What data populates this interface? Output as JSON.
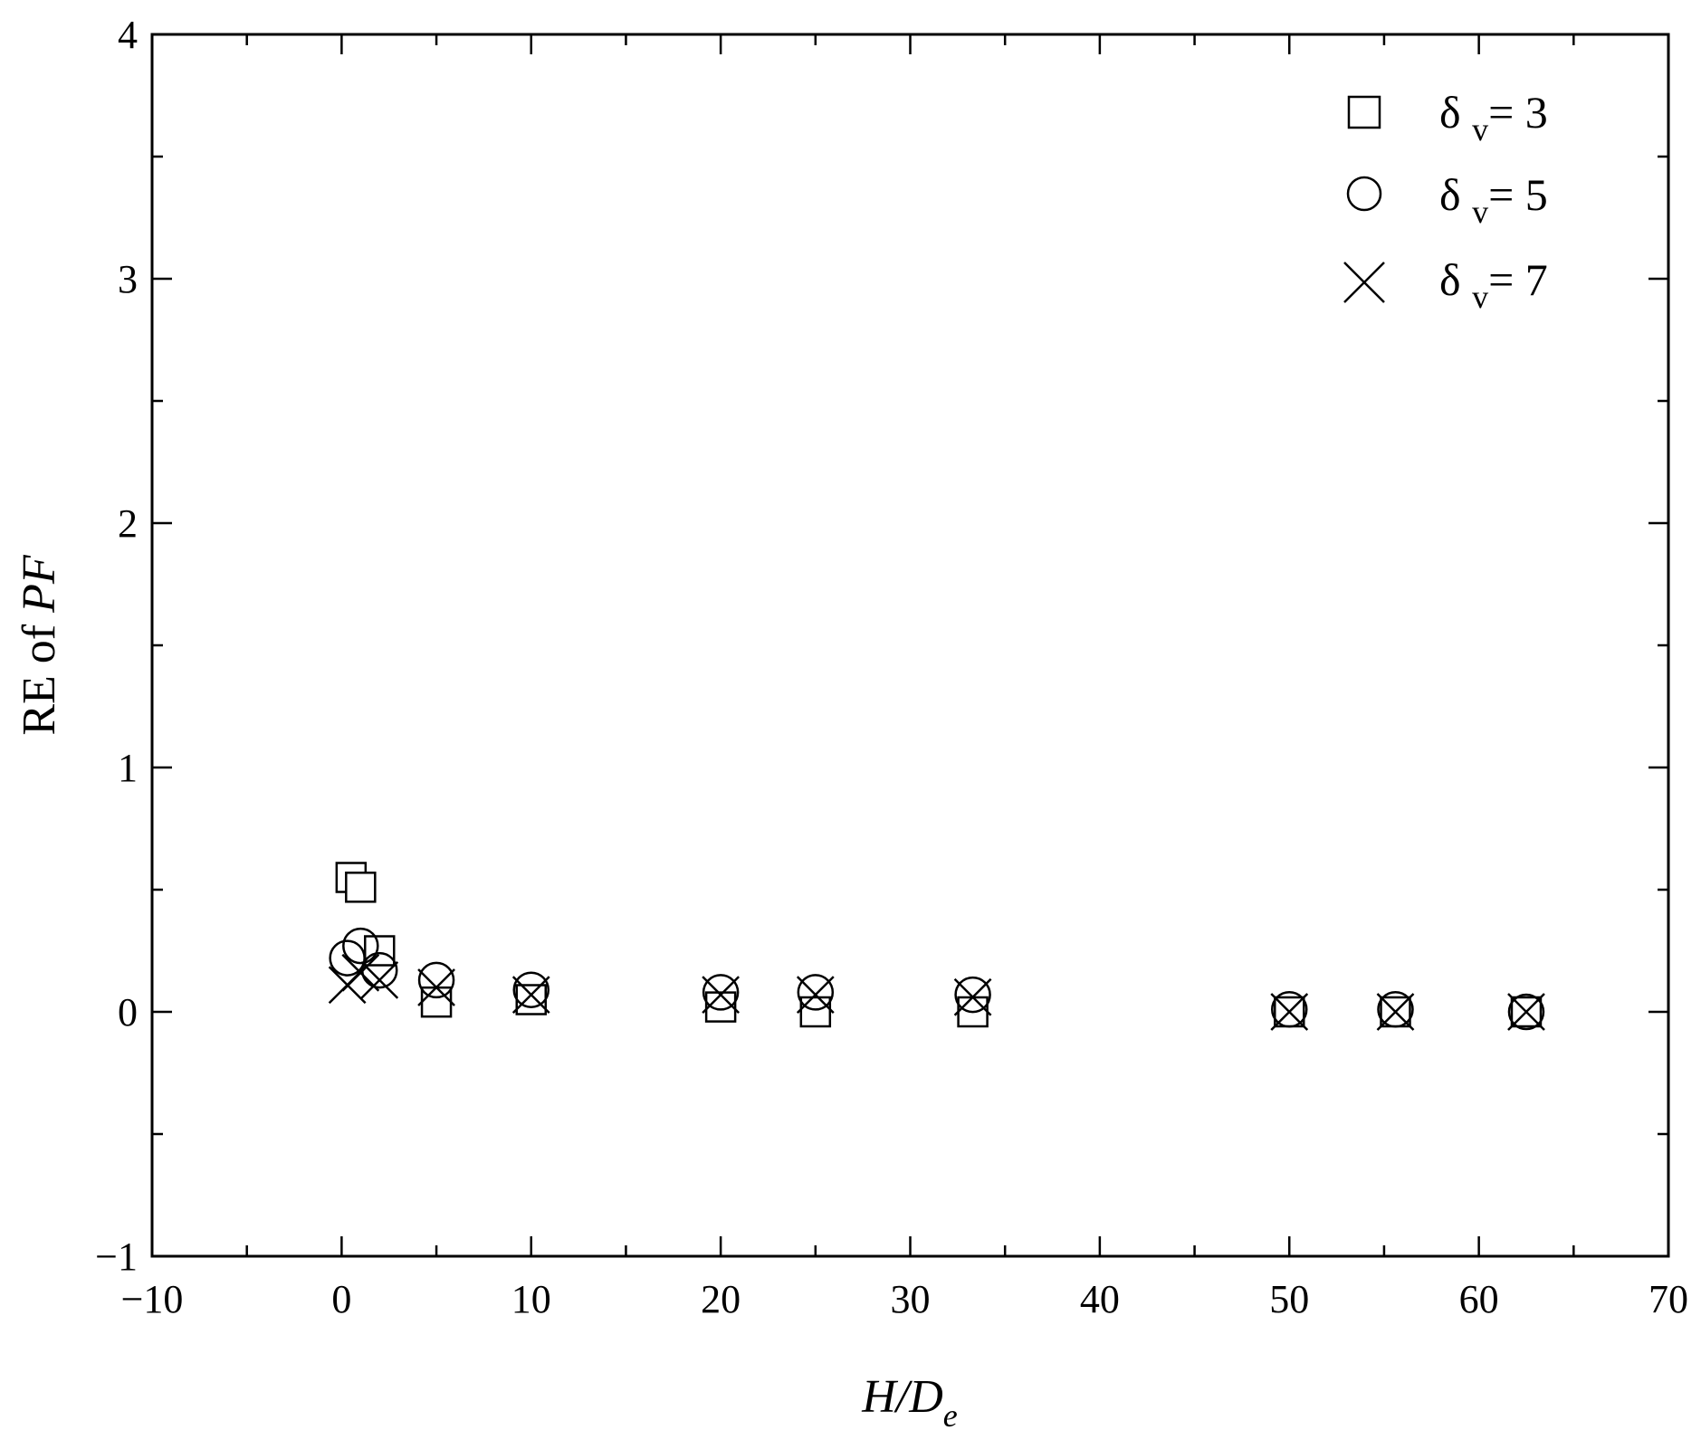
{
  "chart_data": {
    "type": "scatter",
    "xlabel": {
      "base": "H/D",
      "sub": "e"
    },
    "ylabel": {
      "prefix": "RE of ",
      "italic": "PF"
    },
    "xlim": [
      -10,
      70
    ],
    "ylim": [
      -1,
      4
    ],
    "x_ticks": [
      -10,
      0,
      10,
      20,
      30,
      40,
      50,
      60,
      70
    ],
    "y_ticks": [
      -1,
      0,
      1,
      2,
      3,
      4
    ],
    "x_tick_labels": [
      "−10",
      "0",
      "10",
      "20",
      "30",
      "40",
      "50",
      "60",
      "70"
    ],
    "y_tick_labels": [
      "−1",
      "0",
      "1",
      "2",
      "3",
      "4"
    ],
    "grid": false,
    "legend_position": "top-right",
    "series": [
      {
        "name": {
          "prefix": "δ ",
          "sub": "v",
          "suffix": "= 3"
        },
        "marker": "square",
        "points": [
          [
            0.5,
            0.55
          ],
          [
            1.0,
            0.51
          ],
          [
            2.0,
            0.25
          ],
          [
            5.0,
            0.04
          ],
          [
            10.0,
            0.05
          ],
          [
            20.0,
            0.02
          ],
          [
            25.0,
            0.0
          ],
          [
            33.3,
            0.0
          ],
          [
            50.0,
            0.0
          ],
          [
            55.6,
            0.0
          ],
          [
            62.5,
            0.0
          ]
        ]
      },
      {
        "name": {
          "prefix": "δ ",
          "sub": "v",
          "suffix": "= 5"
        },
        "marker": "circle",
        "points": [
          [
            0.3,
            0.22
          ],
          [
            1.0,
            0.27
          ],
          [
            2.0,
            0.17
          ],
          [
            5.0,
            0.13
          ],
          [
            10.0,
            0.09
          ],
          [
            20.0,
            0.08
          ],
          [
            25.0,
            0.08
          ],
          [
            33.3,
            0.07
          ],
          [
            50.0,
            0.01
          ],
          [
            55.6,
            0.01
          ],
          [
            62.5,
            0.0
          ]
        ]
      },
      {
        "name": {
          "prefix": "δ ",
          "sub": "v",
          "suffix": "= 7"
        },
        "marker": "cross",
        "points": [
          [
            0.3,
            0.11
          ],
          [
            1.0,
            0.16
          ],
          [
            2.0,
            0.13
          ],
          [
            5.0,
            0.1
          ],
          [
            10.0,
            0.07
          ],
          [
            20.0,
            0.07
          ],
          [
            25.0,
            0.07
          ],
          [
            33.3,
            0.06
          ],
          [
            50.0,
            0.0
          ],
          [
            55.6,
            0.0
          ],
          [
            62.5,
            0.0
          ]
        ]
      }
    ]
  }
}
